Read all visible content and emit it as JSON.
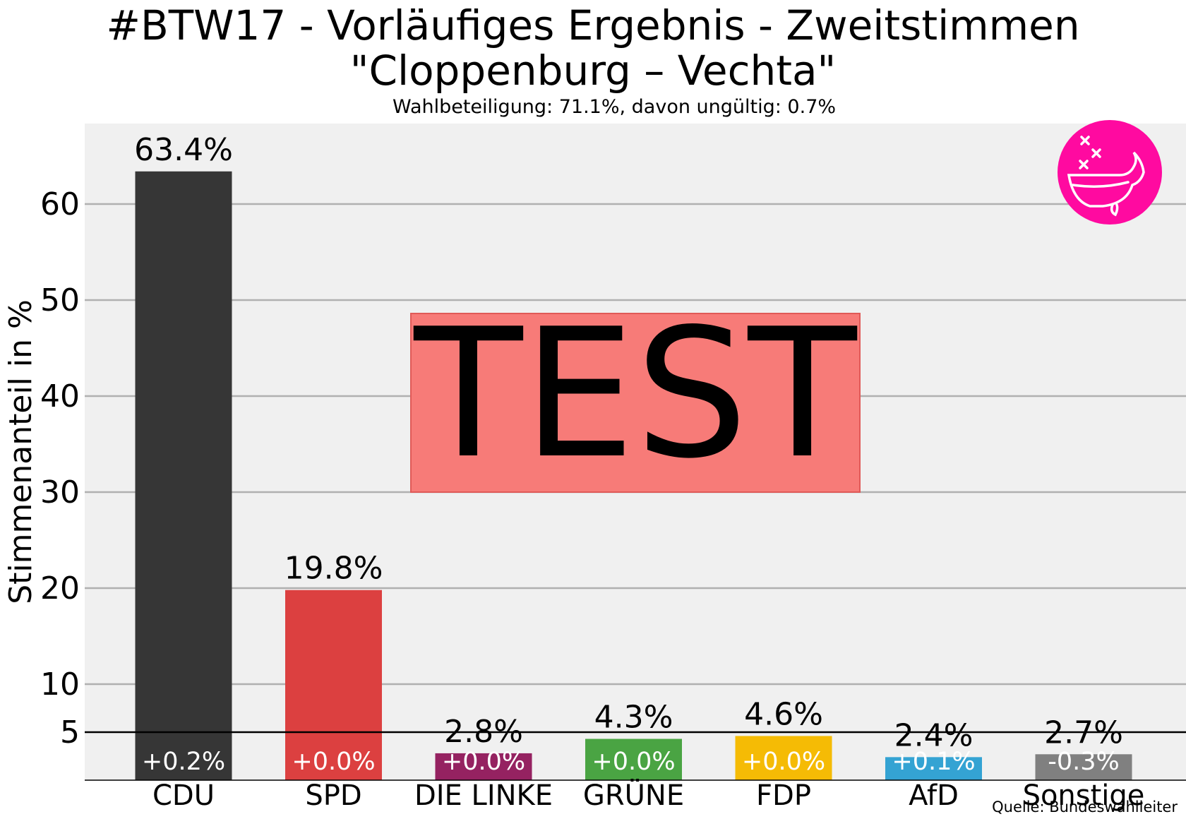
{
  "title_line1": "#BTW17 - Vorläufiges Ergebnis - Zweitstimmen",
  "title_line2": "\"Cloppenburg – Vechta\"",
  "subtitle": "Wahlbeteiligung: 71.1%,  davon ungültig: 0.7%",
  "source": "Quelle: Bundeswahlleiter",
  "watermark": "TEST",
  "colors": {
    "background": "#f0f0f0",
    "grid": "#b0b0b0",
    "watermark_box": "#f77b78",
    "logo": "#ff0aa0"
  },
  "chart_data": {
    "type": "bar",
    "ylabel": "Stimmenanteil in %",
    "ylim": [
      0,
      68
    ],
    "yticks": [
      5,
      10,
      20,
      30,
      40,
      50,
      60
    ],
    "threshold": 5,
    "grid": true,
    "categories": [
      "CDU",
      "SPD",
      "DIE LINKE",
      "GRÜNE",
      "FDP",
      "AfD",
      "Sonstige"
    ],
    "values": [
      63.4,
      19.8,
      2.8,
      4.3,
      4.6,
      2.4,
      2.7
    ],
    "value_labels": [
      "63.4%",
      "19.8%",
      "2.8%",
      "4.3%",
      "4.6%",
      "2.4%",
      "2.7%"
    ],
    "change_labels": [
      "+0.2%",
      "+0.0%",
      "+0.0%",
      "+0.0%",
      "+0.0%",
      "+0.1%",
      "-0.3%"
    ],
    "bar_colors": [
      "#363636",
      "#dc4040",
      "#952261",
      "#4aa443",
      "#f5bb05",
      "#34a3d3",
      "#808080"
    ]
  }
}
